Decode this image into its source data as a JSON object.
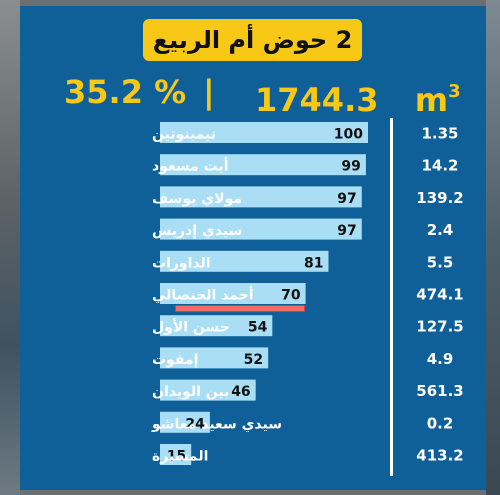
{
  "header": {
    "title": "2 حوض أم الربيع",
    "percent": "35.2 %",
    "separator": "|",
    "volume_value": "1744.3",
    "volume_unit": "m",
    "volume_exp": "3"
  },
  "colors": {
    "panel": "#0f5f98",
    "bar": "#a9def5",
    "title_box": "#f7c815",
    "headline_text": "#f7c815",
    "highlight": "#f26b6b"
  },
  "chart_data": {
    "type": "bar",
    "orientation": "horizontal",
    "categories": [
      "تيمينوتين",
      "أيت مسعود",
      "مولاي يوسف",
      "سيدي إدريس",
      "الداورات",
      "أحمد الحنصالي",
      "حسن الأول",
      "إمفوت",
      "بين الويدان",
      "سيدي سعيد معاشو",
      "المسيرة"
    ],
    "values": [
      100,
      99,
      97,
      97,
      81,
      70,
      54,
      52,
      46,
      24,
      15
    ],
    "volumes": [
      "1.35",
      "14.2",
      "139.2",
      "2.4",
      "5.5",
      "474.1",
      "127.5",
      "4.9",
      "561.3",
      "0.2",
      "413.2"
    ],
    "xlim": [
      0,
      100
    ],
    "grid": false,
    "legend": "none"
  }
}
